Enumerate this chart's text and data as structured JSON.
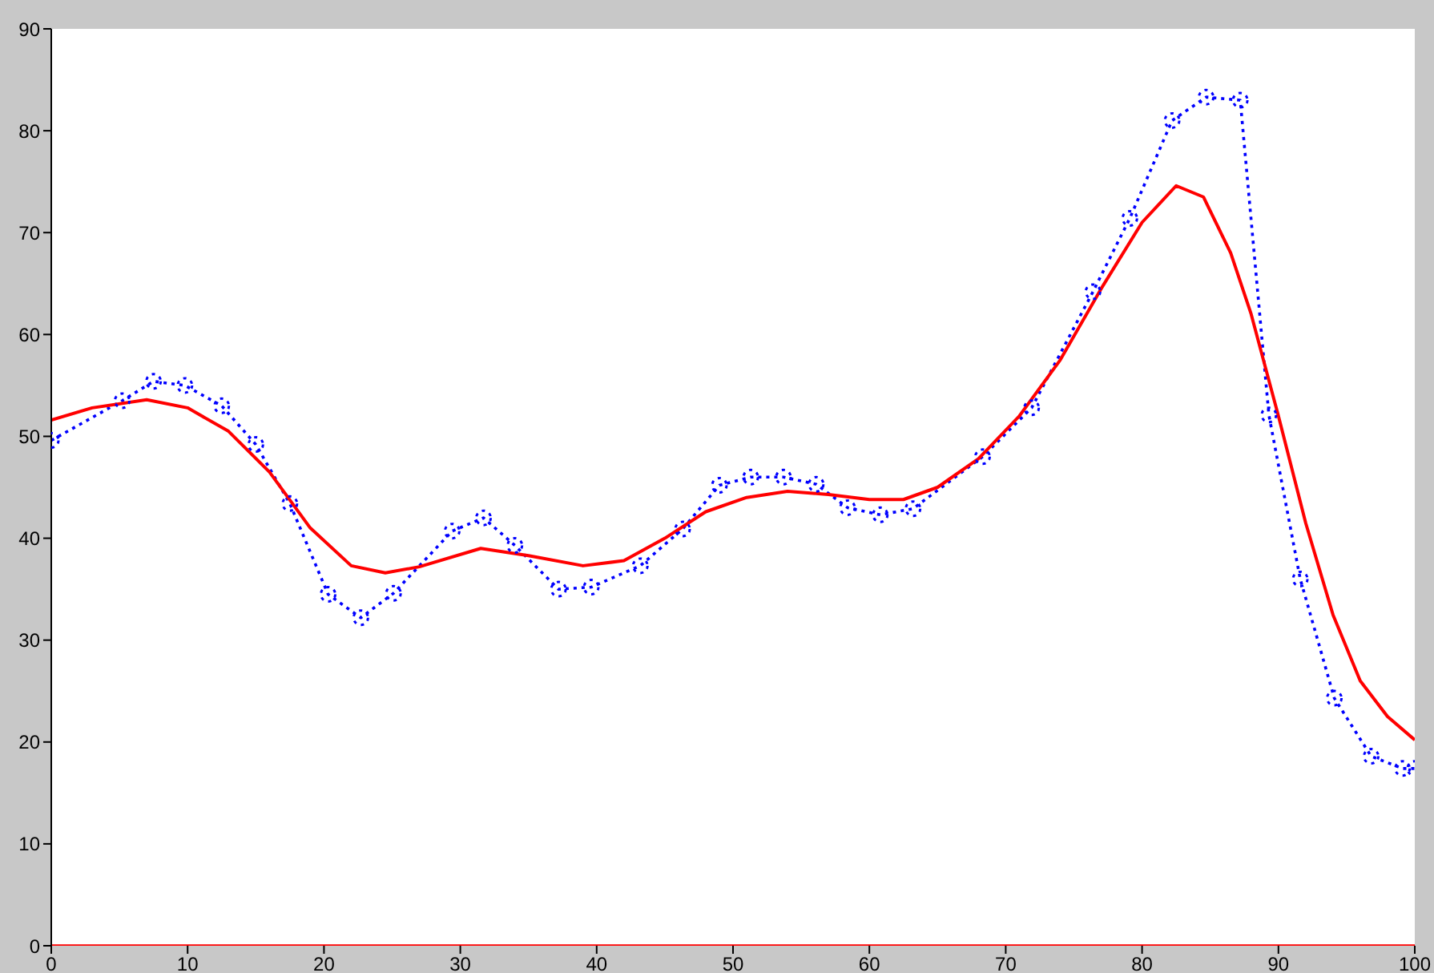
{
  "chart_data": {
    "type": "line",
    "xlim": [
      0,
      100
    ],
    "xticks": [
      0,
      10,
      20,
      30,
      40,
      50,
      60,
      70,
      80,
      90,
      100
    ],
    "ylim": [
      0,
      90
    ],
    "yticks": [
      0,
      10,
      20,
      30,
      40,
      50,
      60,
      70,
      80,
      90
    ],
    "grid": false,
    "series": [
      {
        "color": "#0000ff",
        "marker": "circle",
        "line_style": "dotted",
        "x": [
          0,
          5.2,
          7.5,
          9.8,
          12.5,
          15,
          17.5,
          20.3,
          22.7,
          25.1,
          29.4,
          31.7,
          34,
          37.2,
          39.6,
          43.2,
          46.3,
          49,
          51.3,
          53.7,
          56.1,
          58.4,
          60.8,
          63.2,
          68.3,
          71.9,
          76.4,
          79.1,
          82.2,
          84.7,
          87.2,
          89.3,
          91.6,
          94.1,
          96.8,
          99.1,
          100
        ],
        "values": [
          49.6,
          53.5,
          55.4,
          55,
          53,
          49.2,
          43.4,
          34.5,
          32.2,
          34.6,
          40.7,
          42,
          39.3,
          35,
          35.2,
          37.3,
          40.9,
          45.2,
          46,
          46,
          45.3,
          43,
          42.3,
          42.9,
          48,
          52.8,
          64.2,
          71.4,
          81,
          83.3,
          83,
          52.1,
          36,
          24.3,
          18.6,
          17.4,
          17.4
        ]
      },
      {
        "color": "#ff0000",
        "marker": "none",
        "line_style": "solid",
        "x": [
          0,
          3,
          7,
          10,
          13,
          16,
          19,
          22,
          24.5,
          27,
          31.5,
          35,
          39,
          42,
          45,
          48,
          51,
          54,
          57,
          60,
          62.5,
          65,
          68,
          71,
          74,
          77,
          80,
          82.5,
          84.5,
          86.5,
          88,
          90,
          92,
          94,
          96,
          98,
          100
        ],
        "values": [
          51.6,
          52.8,
          53.6,
          52.8,
          50.5,
          46.5,
          41,
          37.3,
          36.6,
          37.2,
          39,
          38.3,
          37.3,
          37.8,
          40,
          42.6,
          44,
          44.6,
          44.3,
          43.8,
          43.8,
          45,
          47.8,
          52,
          57.5,
          64.5,
          71,
          74.6,
          73.5,
          68,
          62,
          52,
          41.5,
          32.5,
          26,
          22.5,
          20.2
        ]
      },
      {
        "color": "#ff0000",
        "marker": "none",
        "line_style": "solid",
        "x": [
          0,
          100
        ],
        "values": [
          0,
          0
        ]
      }
    ]
  }
}
